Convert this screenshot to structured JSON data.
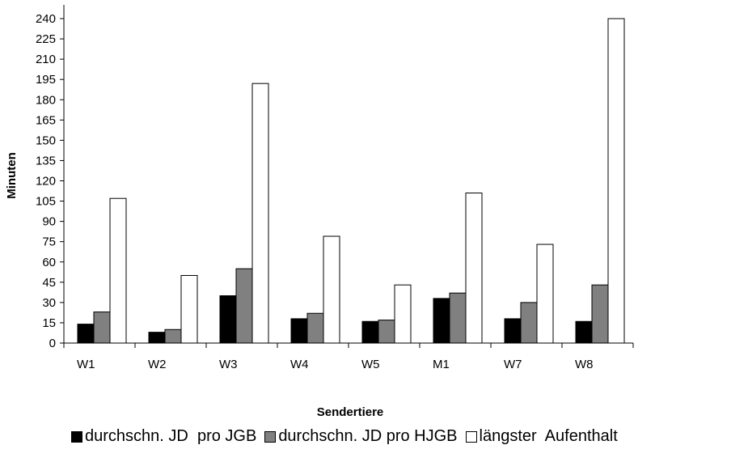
{
  "chart_data": {
    "type": "bar",
    "xlabel": "Sendertiere",
    "ylabel": "Minuten",
    "categories": [
      "W1",
      "W2",
      "W3",
      "W4",
      "W5",
      "M1",
      "W7",
      "W8"
    ],
    "ylim": [
      0,
      240
    ],
    "yticks": [
      0,
      15,
      30,
      45,
      60,
      75,
      90,
      105,
      120,
      135,
      150,
      165,
      180,
      195,
      210,
      225,
      240
    ],
    "grid": false,
    "legend_position": "bottom",
    "series": [
      {
        "name": "durchschn. JD  pro JGB",
        "color": "#000000",
        "values": [
          14,
          8,
          35,
          18,
          16,
          33,
          18,
          16
        ]
      },
      {
        "name": "durchschn. JD pro HJGB",
        "color": "#808080",
        "values": [
          23,
          10,
          55,
          22,
          17,
          37,
          30,
          43
        ]
      },
      {
        "name": "längster  Aufenthalt",
        "color": "#ffffff",
        "values": [
          107,
          50,
          192,
          79,
          43,
          111,
          73,
          240
        ]
      }
    ]
  }
}
